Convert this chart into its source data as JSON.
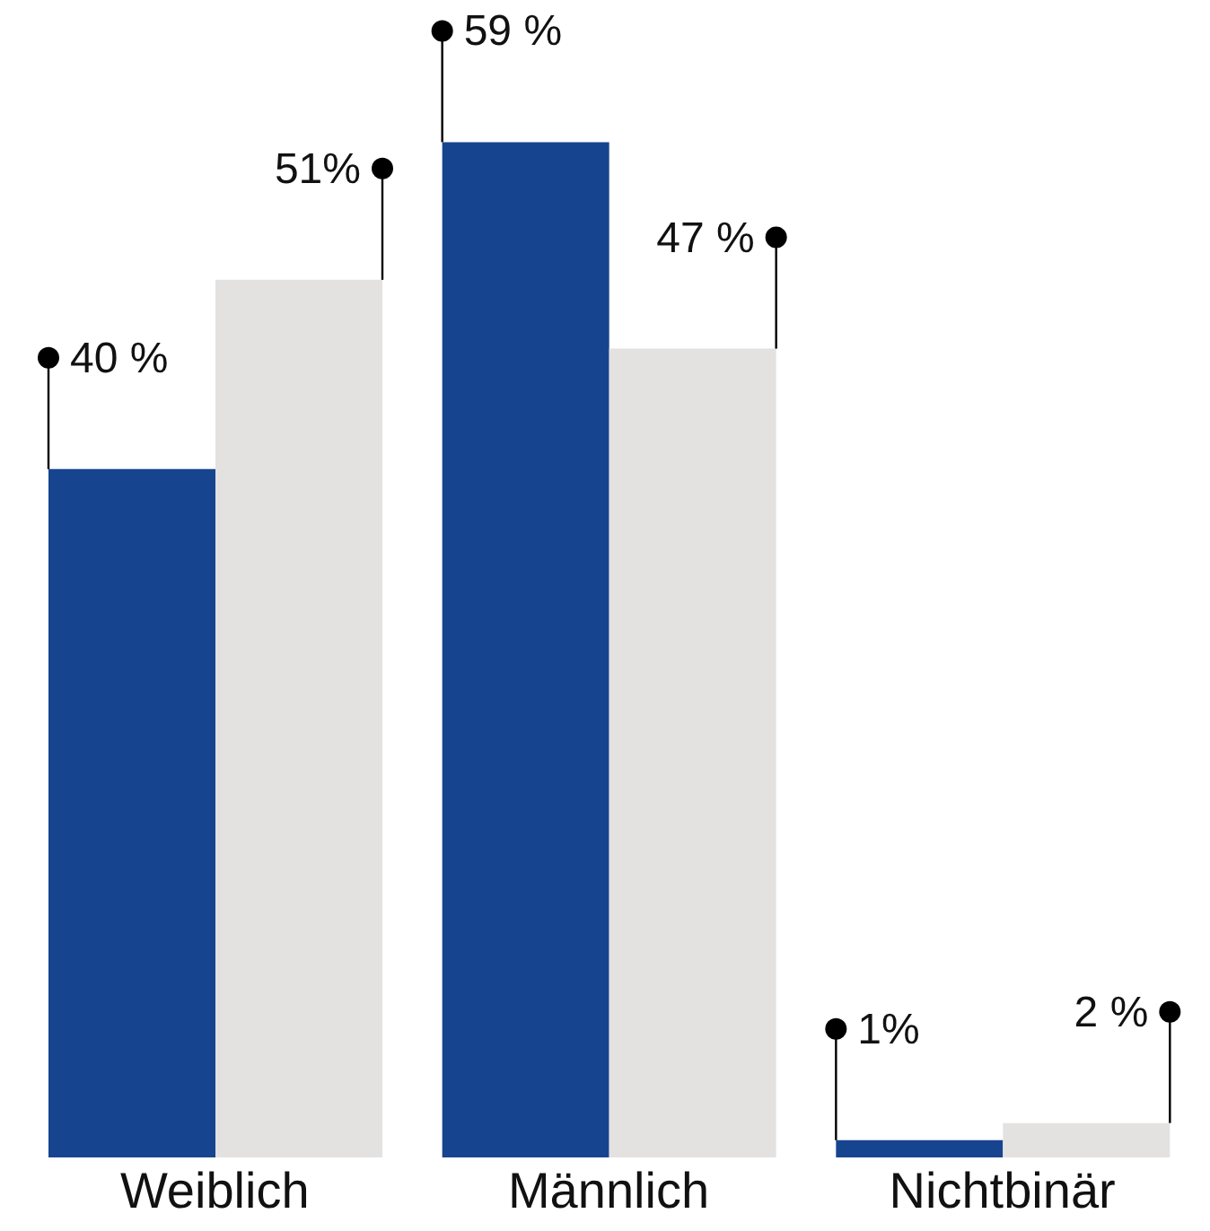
{
  "chart_data": {
    "type": "bar",
    "categories": [
      "Weiblich",
      "Männlich",
      "Nichtbinär"
    ],
    "series": [
      {
        "color": "#17448f",
        "values": [
          40,
          59,
          1
        ],
        "value_labels": [
          "40 %",
          "59 %",
          "1%"
        ]
      },
      {
        "color": "#e4e1e1",
        "values": [
          51,
          47,
          2
        ],
        "value_labels": [
          "51%",
          "47 %",
          "2 %"
        ]
      }
    ],
    "legend": false,
    "grid": false
  }
}
